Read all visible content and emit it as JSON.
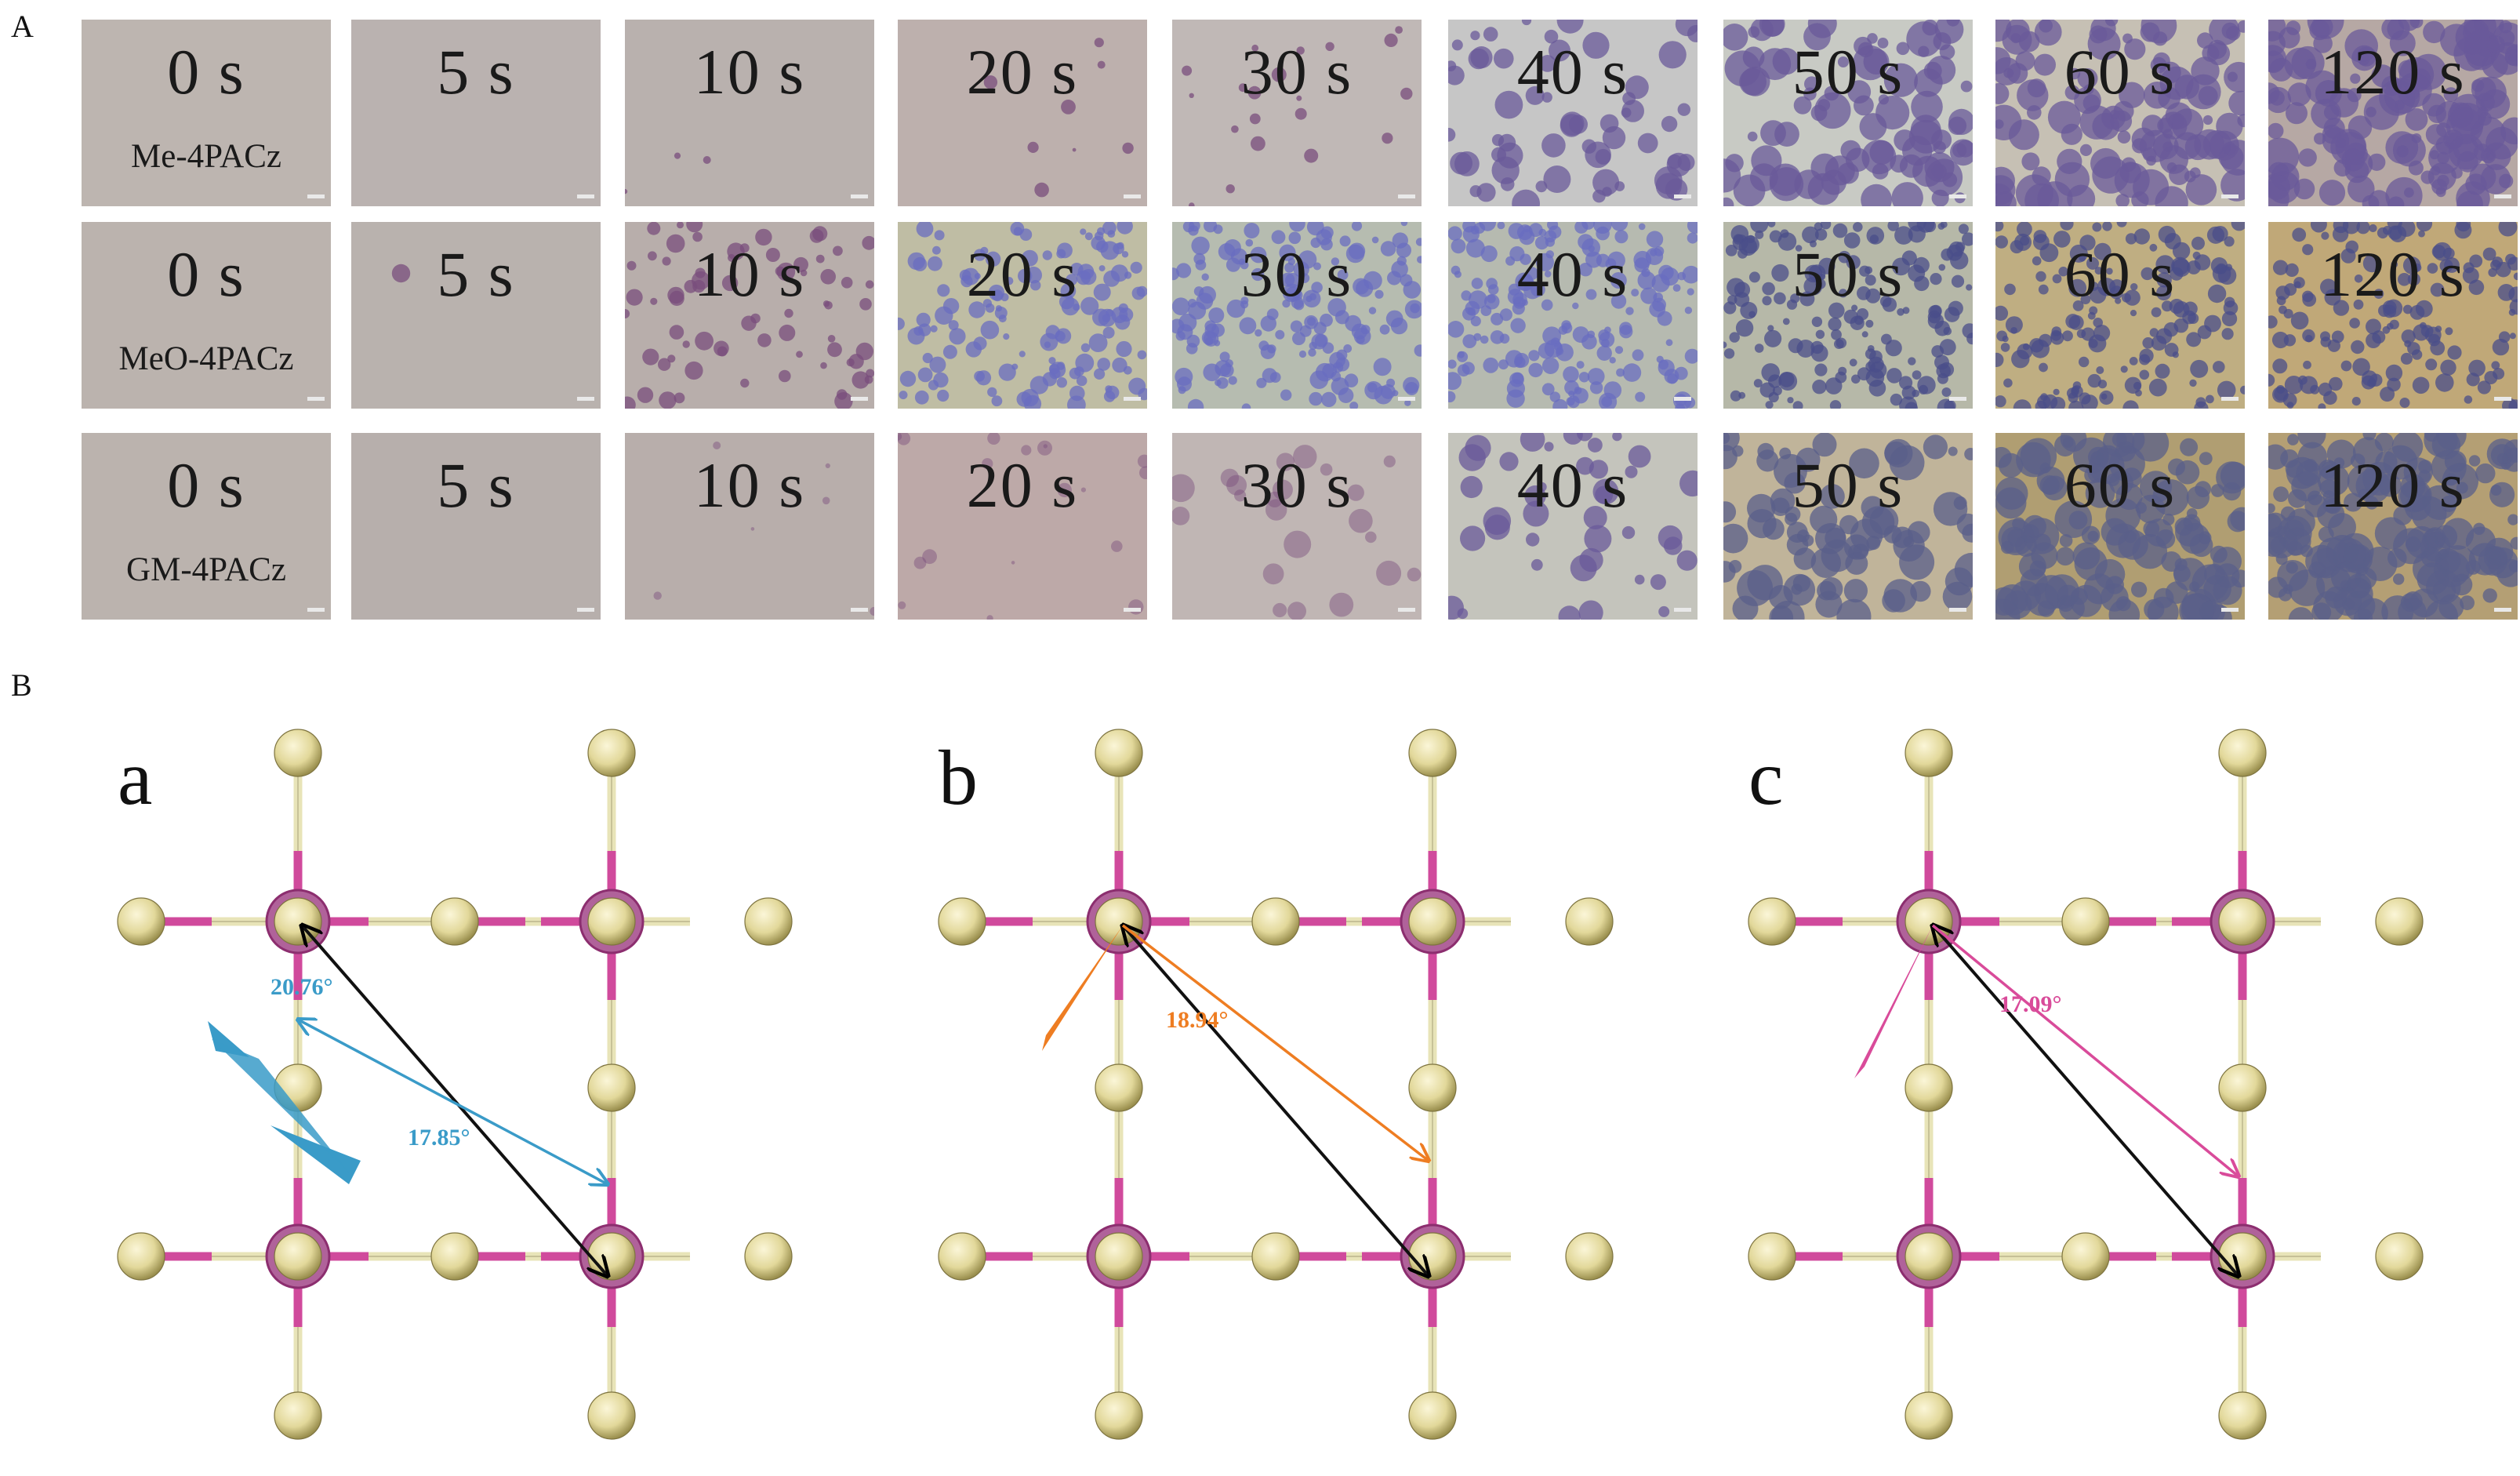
{
  "panel_a": {
    "label": "A",
    "columns": [
      "0 s",
      "5 s",
      "10 s",
      "20 s",
      "30 s",
      "40 s",
      "50 s",
      "60 s",
      "120 s"
    ],
    "rows": [
      {
        "molecule": "Me-4PACz"
      },
      {
        "molecule": "MeO-4PACz"
      },
      {
        "molecule": "GM-4PACz"
      }
    ]
  },
  "panel_b": {
    "label": "B",
    "subpanels": [
      {
        "letter": "a",
        "angles": [
          "20.76°",
          "17.85°"
        ],
        "accent": "#3a9bc8"
      },
      {
        "letter": "b",
        "angles": [
          "18.94°"
        ],
        "accent": "#ee7d22"
      },
      {
        "letter": "c",
        "angles": [
          "17.09°"
        ],
        "accent": "#d94b9a"
      }
    ]
  },
  "colors": {
    "atom": "#e2d89a",
    "atom_dark": "#9a8f4e",
    "bond_pink": "#d04a9c",
    "bond_light": "#e8e4b8",
    "ring": "#8c2e6f",
    "arrow": "#111111"
  }
}
